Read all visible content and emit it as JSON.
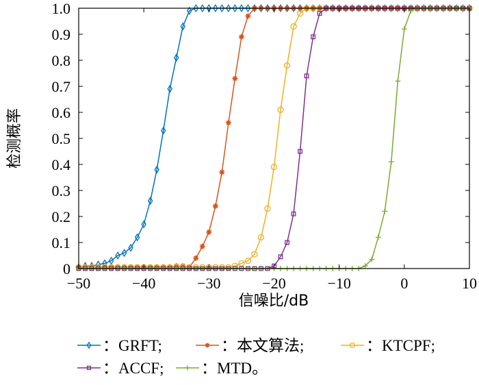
{
  "chart_data": {
    "type": "line",
    "title": "",
    "xlabel": "信噪比/dB",
    "ylabel": "检测概率",
    "xlim": [
      -50,
      10
    ],
    "ylim": [
      0,
      1
    ],
    "xticks": [
      -50,
      -40,
      -30,
      -20,
      -10,
      0,
      10
    ],
    "xtick_labels": [
      "−50",
      "−40",
      "−30",
      "−20",
      "−10",
      "0",
      "10"
    ],
    "yticks": [
      0,
      0.1,
      0.2,
      0.3,
      0.4,
      0.5,
      0.6,
      0.7,
      0.8,
      0.9,
      1.0
    ],
    "ytick_labels": [
      "0",
      "0.1",
      "0.2",
      "0.3",
      "0.4",
      "0.5",
      "0.6",
      "0.7",
      "0.8",
      "0.9",
      "1.0"
    ],
    "grid": false,
    "legend_placement": "bottom",
    "x": [
      -50,
      -49,
      -48,
      -47,
      -46,
      -45,
      -44,
      -43,
      -42,
      -41,
      -40,
      -39,
      -38,
      -37,
      -36,
      -35,
      -34,
      -33,
      -32,
      -31,
      -30,
      -29,
      -28,
      -27,
      -26,
      -25,
      -24,
      -23,
      -22,
      -21,
      -20,
      -19,
      -18,
      -17,
      -16,
      -15,
      -14,
      -13,
      -12,
      -11,
      -10,
      -9,
      -8,
      -7,
      -6,
      -5,
      -4,
      -3,
      -2,
      -1,
      0,
      1,
      2,
      3,
      4,
      5,
      6,
      7,
      8,
      9,
      10
    ],
    "series": [
      {
        "name": "GRFT",
        "legend_label": "：GRFT;",
        "color": "#0072BD",
        "marker": "diamond",
        "values": [
          0.005,
          0.01,
          0.01,
          0.015,
          0.02,
          0.03,
          0.05,
          0.06,
          0.08,
          0.12,
          0.17,
          0.26,
          0.38,
          0.53,
          0.69,
          0.81,
          0.93,
          0.99,
          1,
          1,
          1,
          1,
          1,
          1,
          1,
          1,
          1,
          1,
          1,
          1,
          1,
          1,
          1,
          1,
          1,
          1,
          1,
          1,
          1,
          1,
          1,
          1,
          1,
          1,
          1,
          1,
          1,
          1,
          1,
          1,
          1,
          1,
          1,
          1,
          1,
          1,
          1,
          1,
          1,
          1,
          1
        ]
      },
      {
        "name": "本文算法",
        "legend_label": "：本文算法;",
        "color": "#D95319",
        "marker": "asterisk",
        "values": [
          0.005,
          0.005,
          0.005,
          0.005,
          0.005,
          0.005,
          0.005,
          0.005,
          0.005,
          0.005,
          0.005,
          0.005,
          0.005,
          0.005,
          0.005,
          0.01,
          0.01,
          0.005,
          0.04,
          0.085,
          0.14,
          0.24,
          0.37,
          0.56,
          0.73,
          0.89,
          0.97,
          1,
          1,
          1,
          1,
          1,
          1,
          1,
          1,
          1,
          1,
          1,
          1,
          1,
          1,
          1,
          1,
          1,
          1,
          1,
          1,
          1,
          1,
          1,
          1,
          1,
          1,
          1,
          1,
          1,
          1,
          1,
          1,
          1,
          1
        ]
      },
      {
        "name": "KTCPF",
        "legend_label": "：KTCPF;",
        "color": "#EDB120",
        "marker": "circle",
        "values": [
          0.005,
          0.005,
          0.005,
          0.005,
          0.005,
          0.005,
          0.005,
          0.005,
          0.005,
          0.005,
          0.005,
          0.005,
          0.005,
          0.005,
          0.005,
          0.005,
          0.005,
          0.005,
          0.005,
          0.005,
          0.005,
          0.005,
          0.005,
          0.005,
          0.01,
          0.02,
          0.03,
          0.055,
          0.12,
          0.23,
          0.39,
          0.61,
          0.78,
          0.93,
          0.98,
          1,
          1,
          1,
          1,
          1,
          1,
          1,
          1,
          1,
          1,
          1,
          1,
          1,
          1,
          1,
          1,
          1,
          1,
          1,
          1,
          1,
          1,
          1,
          1,
          1,
          1
        ]
      },
      {
        "name": "ACCF",
        "legend_label": "：ACCF;",
        "color": "#7E2F8E",
        "marker": "square",
        "values": [
          0,
          0,
          0,
          0,
          0,
          0,
          0,
          0,
          0,
          0,
          0,
          0,
          0,
          0,
          0,
          0,
          0,
          0,
          0,
          0,
          0,
          0,
          0,
          0,
          0,
          0,
          0,
          0,
          0,
          0,
          0.01,
          0.045,
          0.1,
          0.21,
          0.45,
          0.74,
          0.89,
          0.98,
          1,
          1,
          1,
          1,
          1,
          1,
          1,
          1,
          1,
          1,
          1,
          1,
          1,
          1,
          1,
          1,
          1,
          1,
          1,
          1,
          1,
          1,
          1
        ]
      },
      {
        "name": "MTD",
        "legend_label": "：MTD。",
        "color": "#77AC30",
        "marker": "plus",
        "values": [
          0,
          0,
          0,
          0,
          0,
          0,
          0,
          0,
          0,
          0,
          0,
          0,
          0,
          0,
          0,
          0,
          0,
          0,
          0,
          0,
          0,
          0,
          0,
          0,
          0,
          0,
          0,
          0,
          0,
          0,
          0,
          0,
          0,
          0,
          0,
          0,
          0,
          0,
          0,
          0,
          0,
          0,
          0,
          0,
          0.01,
          0.035,
          0.12,
          0.22,
          0.41,
          0.72,
          0.92,
          0.99,
          1,
          1,
          1,
          1,
          1,
          1,
          1,
          1,
          1
        ]
      }
    ]
  }
}
